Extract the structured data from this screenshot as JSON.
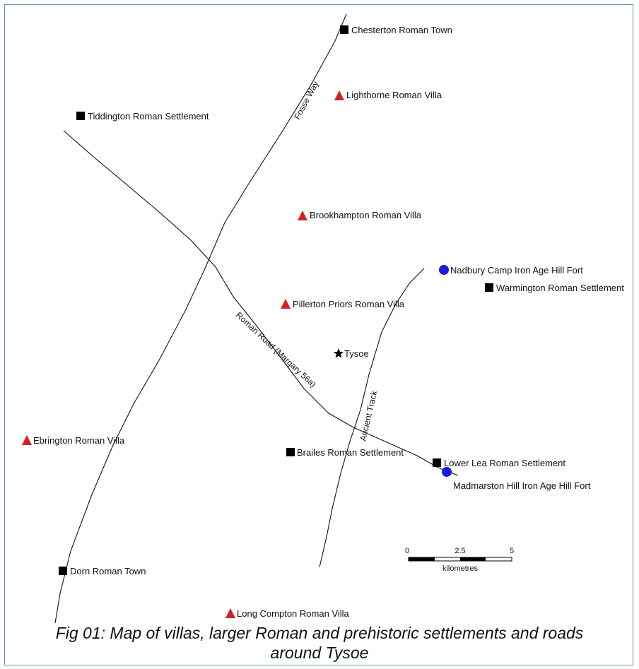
{
  "map": {
    "sites": {
      "chesterton": {
        "label": "Chesterton Roman Town",
        "type": "town"
      },
      "lighthorne": {
        "label": "Lighthorne Roman Villa",
        "type": "villa"
      },
      "tiddington": {
        "label": "Tiddington Roman Settlement",
        "type": "settlement"
      },
      "brookhampton": {
        "label": "Brookhampton Roman Villa",
        "type": "villa"
      },
      "nadbury": {
        "label": "Nadbury Camp Iron Age Hill Fort",
        "type": "hill-fort"
      },
      "warmington": {
        "label": "Warmington Roman Settlement",
        "type": "settlement"
      },
      "pillerton": {
        "label": "Pillerton Priors Roman Villa",
        "type": "villa"
      },
      "tysoe": {
        "label": "Tysoe",
        "type": "focus"
      },
      "ebrington": {
        "label": "Ebrington Roman Villa",
        "type": "villa"
      },
      "brailes": {
        "label": "Brailes Roman Settlement",
        "type": "settlement"
      },
      "lowerlea": {
        "label": "Lower Lea Roman Settlement",
        "type": "settlement"
      },
      "madmarston": {
        "label": "Madmarston Hill Iron Age Hill Fort",
        "type": "hill-fort"
      },
      "dorn": {
        "label": "Dorn Roman Town",
        "type": "town"
      },
      "longcompton": {
        "label": "Long Compton Roman Villa",
        "type": "villa"
      }
    },
    "roads": {
      "fosse": "Fosse Way",
      "margary": "Roman Road (Margary 56a)",
      "ancient": "Ancient Track"
    },
    "scale": {
      "ticks": [
        "0",
        "2.5",
        "5"
      ],
      "unit": "kilometres"
    },
    "colors": {
      "villa": "#d42020",
      "hill_fort": "#1a1ad8",
      "settlement": "#000000",
      "frame": "#6a8fb5"
    }
  },
  "caption": {
    "line1": "Fig 01: Map of villas, larger Roman and prehistoric settlements and roads",
    "line2": "around Tysoe"
  }
}
